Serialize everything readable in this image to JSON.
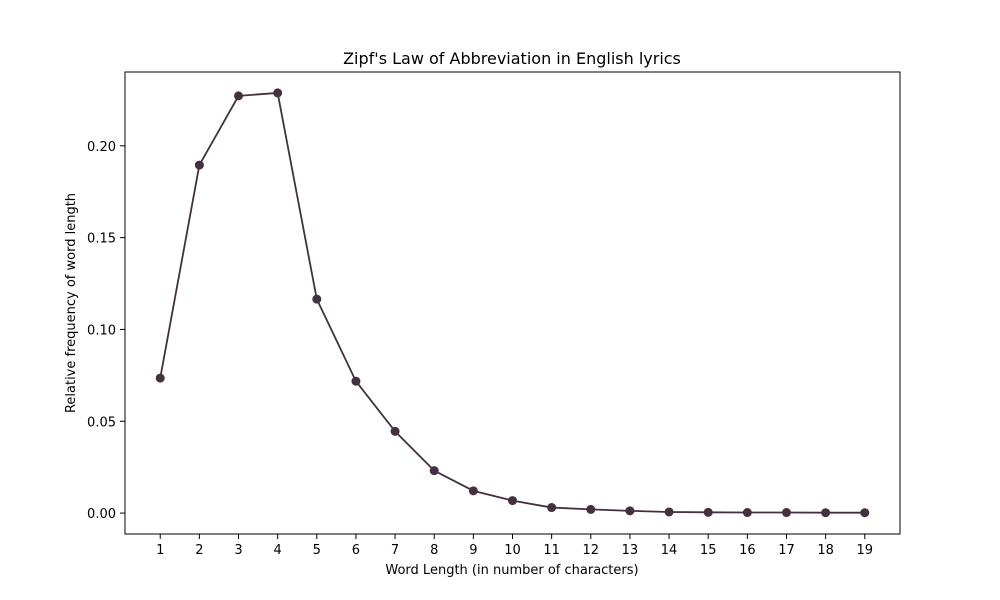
{
  "chart_data": {
    "type": "line",
    "title": "Zipf's Law of Abbreviation in English lyrics",
    "xlabel": "Word Length (in number of characters)",
    "ylabel": "Relative frequency of word length",
    "x": [
      1,
      2,
      3,
      4,
      5,
      6,
      7,
      8,
      9,
      10,
      11,
      12,
      13,
      14,
      15,
      16,
      17,
      18,
      19
    ],
    "series": [
      {
        "values": [
          0.0735,
          0.1895,
          0.2272,
          0.2288,
          0.1165,
          0.0718,
          0.0445,
          0.0231,
          0.0121,
          0.0068,
          0.003,
          0.002,
          0.0012,
          0.0006,
          0.0004,
          0.0003,
          0.0003,
          0.0002,
          0.0002
        ],
        "color": "#45303f",
        "marker": "circle"
      }
    ],
    "xlim": [
      0.1,
      19.9
    ],
    "ylim": [
      -0.0114,
      0.2402
    ],
    "xticks": [
      1,
      2,
      3,
      4,
      5,
      6,
      7,
      8,
      9,
      10,
      11,
      12,
      13,
      14,
      15,
      16,
      17,
      18,
      19
    ],
    "yticks": [
      0.0,
      0.05,
      0.1,
      0.15,
      0.2
    ],
    "ytick_labels": [
      "0.00",
      "0.05",
      "0.10",
      "0.15",
      "0.20"
    ],
    "grid": false,
    "legend": "none"
  }
}
